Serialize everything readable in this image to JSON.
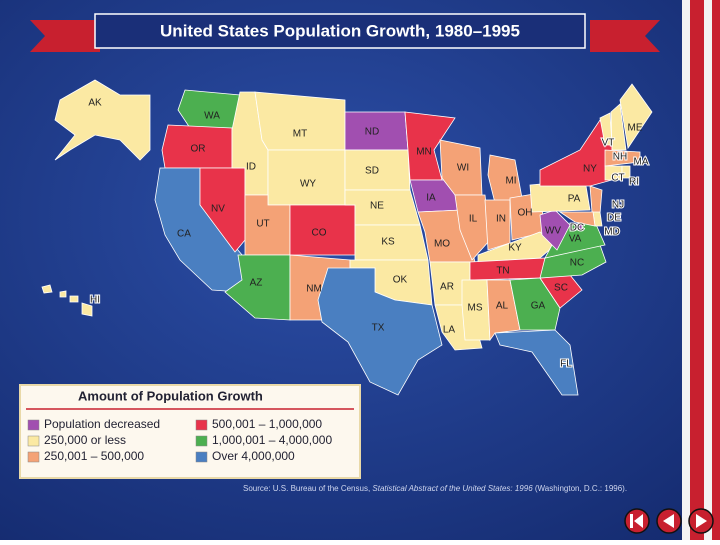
{
  "header": {
    "title": "United States Population Growth, 1980–1995"
  },
  "states": [
    {
      "label": "AK",
      "color": "#fbe9a3"
    },
    {
      "label": "HI",
      "color": "#fbe9a3"
    },
    {
      "label": "WA",
      "color": "#4caf50"
    },
    {
      "label": "OR",
      "color": "#e8334a"
    },
    {
      "label": "CA",
      "color": "#4a7fc1"
    },
    {
      "label": "NV",
      "color": "#e8334a"
    },
    {
      "label": "ID",
      "color": "#fbe9a3"
    },
    {
      "label": "MT",
      "color": "#fbe9a3"
    },
    {
      "label": "WY",
      "color": "#fbe9a3"
    },
    {
      "label": "UT",
      "color": "#f4a276"
    },
    {
      "label": "CO",
      "color": "#e8334a"
    },
    {
      "label": "AZ",
      "color": "#4caf50"
    },
    {
      "label": "NM",
      "color": "#f4a276"
    },
    {
      "label": "ND",
      "color": "#a14fb0"
    },
    {
      "label": "SD",
      "color": "#fbe9a3"
    },
    {
      "label": "NE",
      "color": "#fbe9a3"
    },
    {
      "label": "KS",
      "color": "#fbe9a3"
    },
    {
      "label": "OK",
      "color": "#fbe9a3"
    },
    {
      "label": "TX",
      "color": "#4a7fc1"
    },
    {
      "label": "MN",
      "color": "#e8334a"
    },
    {
      "label": "IA",
      "color": "#a14fb0"
    },
    {
      "label": "MO",
      "color": "#f4a276"
    },
    {
      "label": "AR",
      "color": "#fbe9a3"
    },
    {
      "label": "LA",
      "color": "#fbe9a3"
    },
    {
      "label": "WI",
      "color": "#f4a276"
    },
    {
      "label": "IL",
      "color": "#f4a276"
    },
    {
      "label": "MI",
      "color": "#f4a276"
    },
    {
      "label": "IN",
      "color": "#f4a276"
    },
    {
      "label": "OH",
      "color": "#f4a276"
    },
    {
      "label": "KY",
      "color": "#fbe9a3"
    },
    {
      "label": "TN",
      "color": "#e8334a"
    },
    {
      "label": "MS",
      "color": "#fbe9a3"
    },
    {
      "label": "AL",
      "color": "#f4a276"
    },
    {
      "label": "GA",
      "color": "#4caf50"
    },
    {
      "label": "FL",
      "color": "#4a7fc1"
    },
    {
      "label": "SC",
      "color": "#e8334a"
    },
    {
      "label": "NC",
      "color": "#4caf50"
    },
    {
      "label": "VA",
      "color": "#4caf50"
    },
    {
      "label": "WV",
      "color": "#a14fb0"
    },
    {
      "label": "PA",
      "color": "#fbe9a3"
    },
    {
      "label": "NY",
      "color": "#e8334a"
    },
    {
      "label": "VT",
      "color": "#fbe9a3"
    },
    {
      "label": "NH",
      "color": "#fbe9a3"
    },
    {
      "label": "ME",
      "color": "#fbe9a3"
    },
    {
      "label": "MA",
      "color": "#f4a276"
    },
    {
      "label": "CT",
      "color": "#fbe9a3"
    },
    {
      "label": "RI",
      "color": "#fbe9a3"
    },
    {
      "label": "NJ",
      "color": "#f4a276"
    },
    {
      "label": "DE",
      "color": "#fbe9a3"
    },
    {
      "label": "MD",
      "color": "#f4a276"
    },
    {
      "label": "DC",
      "color": "#a14fb0"
    }
  ],
  "legend": {
    "title": "Amount of Population Growth",
    "items": [
      {
        "label": "Population decreased",
        "color": "#a14fb0"
      },
      {
        "label": "250,000 or less",
        "color": "#fbe9a3"
      },
      {
        "label": "250,001 – 500,000",
        "color": "#f4a276"
      },
      {
        "label": "500,001 – 1,000,000",
        "color": "#e8334a"
      },
      {
        "label": "1,000,001 – 4,000,000",
        "color": "#4caf50"
      },
      {
        "label": "Over 4,000,000",
        "color": "#4a7fc1"
      }
    ]
  },
  "source": {
    "prefix": "Source: U.S. Bureau of the Census, ",
    "publication": "Statistical Abstract of the United States: 1996",
    "suffix": " (Washington, D.C.: 1996)."
  }
}
